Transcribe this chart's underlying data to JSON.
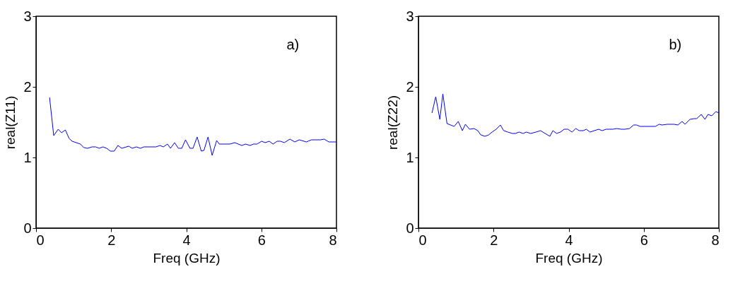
{
  "chart_data": [
    {
      "type": "line",
      "xlabel": "Freq (GHz)",
      "ylabel": "real(Z11)",
      "annotations": [
        "a)"
      ],
      "xlim": [
        0,
        8
      ],
      "xticks": [
        0,
        2,
        4,
        6,
        8
      ],
      "ylim": [
        0,
        3
      ],
      "yticks": [
        0,
        1,
        2,
        3
      ],
      "grid": false,
      "marker": "none",
      "line_style": "solid",
      "series": [
        {
          "color": "#0000ff",
          "x": [
            0.36,
            0.47,
            0.59,
            0.68,
            0.78,
            0.88,
            0.96,
            1.18,
            1.27,
            1.37,
            1.49,
            1.59,
            1.68,
            1.78,
            1.88,
            1.98,
            2.08,
            2.18,
            2.28,
            2.47,
            2.56,
            2.67,
            2.78,
            2.87,
            3.19,
            3.3,
            3.39,
            3.5,
            3.58,
            3.69,
            3.79,
            3.88,
            3.98,
            4.1,
            4.18,
            4.29,
            4.4,
            4.47,
            4.58,
            4.69,
            4.81,
            4.88,
            5.16,
            5.29,
            5.48,
            5.58,
            5.7,
            5.79,
            5.88,
            6.01,
            6.1,
            6.21,
            6.31,
            6.42,
            6.51,
            6.61,
            6.76,
            6.89,
            7.01,
            7.2,
            7.33,
            7.58,
            7.67,
            7.8,
            8.0
          ],
          "values": [
            1.85,
            1.31,
            1.4,
            1.35,
            1.39,
            1.27,
            1.23,
            1.19,
            1.14,
            1.13,
            1.15,
            1.15,
            1.13,
            1.15,
            1.13,
            1.09,
            1.09,
            1.17,
            1.13,
            1.16,
            1.13,
            1.15,
            1.13,
            1.15,
            1.15,
            1.17,
            1.15,
            1.19,
            1.13,
            1.21,
            1.13,
            1.13,
            1.25,
            1.13,
            1.13,
            1.29,
            1.09,
            1.1,
            1.29,
            1.03,
            1.24,
            1.19,
            1.19,
            1.21,
            1.17,
            1.19,
            1.17,
            1.19,
            1.19,
            1.23,
            1.21,
            1.23,
            1.19,
            1.23,
            1.23,
            1.21,
            1.26,
            1.22,
            1.25,
            1.22,
            1.25,
            1.25,
            1.26,
            1.22,
            1.22
          ]
        }
      ]
    },
    {
      "type": "line",
      "xlabel": "Freq (GHz)",
      "ylabel": "real(Z22)",
      "annotations": [
        "b)"
      ],
      "xlim": [
        0,
        8
      ],
      "xticks": [
        0,
        2,
        4,
        6,
        8
      ],
      "ylim": [
        0,
        3
      ],
      "yticks": [
        0,
        1,
        2,
        3
      ],
      "grid": false,
      "marker": "none",
      "line_style": "solid",
      "series": [
        {
          "color": "#0000ff",
          "x": [
            0.36,
            0.46,
            0.57,
            0.65,
            0.76,
            0.95,
            1.06,
            1.17,
            1.25,
            1.36,
            1.48,
            1.58,
            1.66,
            1.77,
            1.87,
            1.96,
            2.07,
            2.18,
            2.27,
            2.38,
            2.5,
            2.58,
            2.68,
            2.79,
            2.87,
            2.99,
            3.13,
            3.25,
            3.5,
            3.58,
            3.68,
            3.78,
            3.88,
            3.98,
            4.09,
            4.19,
            4.28,
            4.39,
            4.47,
            4.57,
            4.8,
            4.89,
            5.0,
            5.18,
            5.28,
            5.4,
            5.5,
            5.62,
            5.73,
            5.81,
            5.9,
            6.31,
            6.41,
            6.49,
            6.62,
            6.81,
            6.91,
            7.02,
            7.1,
            7.23,
            7.34,
            7.41,
            7.53,
            7.63,
            7.71,
            7.81,
            7.92,
            8.0
          ],
          "values": [
            1.63,
            1.86,
            1.54,
            1.9,
            1.48,
            1.44,
            1.51,
            1.38,
            1.47,
            1.4,
            1.41,
            1.38,
            1.32,
            1.3,
            1.32,
            1.36,
            1.4,
            1.46,
            1.38,
            1.36,
            1.34,
            1.34,
            1.36,
            1.34,
            1.36,
            1.34,
            1.36,
            1.38,
            1.3,
            1.38,
            1.34,
            1.36,
            1.4,
            1.4,
            1.36,
            1.41,
            1.38,
            1.38,
            1.4,
            1.36,
            1.4,
            1.38,
            1.4,
            1.4,
            1.41,
            1.4,
            1.4,
            1.41,
            1.46,
            1.46,
            1.44,
            1.44,
            1.47,
            1.46,
            1.47,
            1.47,
            1.46,
            1.51,
            1.47,
            1.54,
            1.55,
            1.55,
            1.61,
            1.54,
            1.61,
            1.59,
            1.65,
            1.63
          ]
        }
      ]
    }
  ]
}
